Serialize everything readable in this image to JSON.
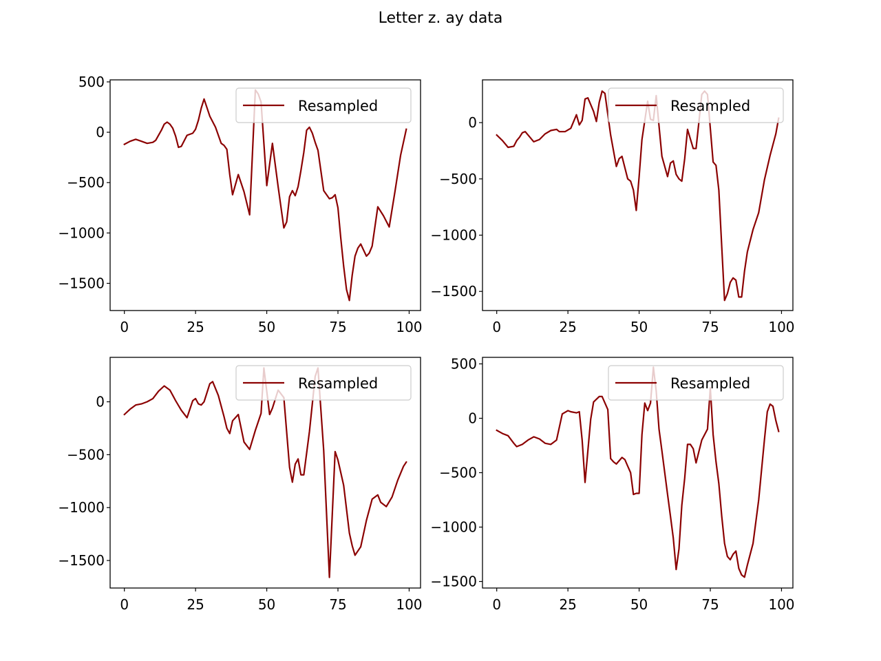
{
  "figure": {
    "title": "Letter z. ay data",
    "line_color": "#8b0000",
    "legend_label": "Resampled"
  },
  "chart_data": [
    {
      "type": "line",
      "legend_placement": "upper right",
      "grid": false,
      "xlim": [
        -5,
        104
      ],
      "ylim": [
        -1770,
        520
      ],
      "xticks": [
        0,
        25,
        50,
        75,
        100
      ],
      "yticks": [
        500,
        0,
        -500,
        -1000,
        -1500
      ],
      "series": [
        {
          "name": "Resampled",
          "x": [
            0,
            2,
            4,
            6,
            8,
            10,
            11,
            13,
            14,
            15,
            16,
            17,
            18,
            19,
            20,
            22,
            24,
            25,
            26,
            27,
            28,
            30,
            32,
            34,
            35,
            36,
            37,
            38,
            40,
            42,
            44,
            46,
            47,
            48,
            50,
            52,
            54,
            56,
            57,
            58,
            59,
            60,
            61,
            62,
            63,
            64,
            65,
            66,
            67,
            68,
            70,
            72,
            73,
            74,
            75,
            76,
            77,
            78,
            79,
            80,
            81,
            82,
            83,
            84,
            85,
            86,
            87,
            89,
            91,
            93,
            95,
            97,
            99
          ],
          "values": [
            -120,
            -90,
            -70,
            -90,
            -110,
            -100,
            -80,
            20,
            80,
            100,
            80,
            40,
            -40,
            -150,
            -140,
            -30,
            -10,
            30,
            120,
            240,
            330,
            160,
            50,
            -110,
            -130,
            -170,
            -420,
            -620,
            -420,
            -590,
            -820,
            420,
            380,
            300,
            -530,
            -110,
            -540,
            -950,
            -890,
            -640,
            -580,
            -630,
            -540,
            -380,
            -200,
            20,
            50,
            -10,
            -100,
            -180,
            -580,
            -660,
            -650,
            -620,
            -750,
            -1050,
            -1330,
            -1560,
            -1670,
            -1420,
            -1230,
            -1150,
            -1110,
            -1170,
            -1230,
            -1200,
            -1130,
            -740,
            -830,
            -940,
            -590,
            -230,
            30
          ]
        }
      ]
    },
    {
      "type": "line",
      "legend_placement": "upper right",
      "grid": false,
      "xlim": [
        -5,
        104
      ],
      "ylim": [
        -1670,
        380
      ],
      "xticks": [
        0,
        25,
        50,
        75,
        100
      ],
      "yticks": [
        0,
        -500,
        -1000,
        -1500
      ],
      "series": [
        {
          "name": "Resampled",
          "x": [
            0,
            2,
            4,
            6,
            7,
            8,
            9,
            10,
            11,
            13,
            15,
            17,
            19,
            21,
            22,
            24,
            26,
            28,
            29,
            30,
            31,
            32,
            34,
            35,
            36,
            37,
            38,
            40,
            42,
            43,
            44,
            46,
            47,
            48,
            49,
            50,
            51,
            53,
            54,
            55,
            56,
            57,
            58,
            60,
            61,
            62,
            63,
            64,
            65,
            66,
            67,
            69,
            70,
            71,
            72,
            73,
            74,
            76,
            77,
            78,
            79,
            80,
            81,
            82,
            83,
            84,
            85,
            86,
            87,
            88,
            90,
            92,
            94,
            96,
            98,
            99
          ],
          "values": [
            -110,
            -160,
            -220,
            -210,
            -160,
            -130,
            -90,
            -80,
            -110,
            -170,
            -150,
            -100,
            -70,
            -60,
            -80,
            -80,
            -50,
            70,
            -20,
            20,
            210,
            220,
            100,
            10,
            180,
            280,
            260,
            -110,
            -390,
            -320,
            -300,
            -500,
            -520,
            -600,
            -780,
            -480,
            -150,
            190,
            30,
            20,
            240,
            -30,
            -300,
            -480,
            -360,
            -340,
            -460,
            -500,
            -520,
            -320,
            -60,
            -230,
            -230,
            10,
            250,
            280,
            250,
            -350,
            -380,
            -600,
            -1100,
            -1580,
            -1520,
            -1420,
            -1380,
            -1400,
            -1550,
            -1550,
            -1320,
            -1150,
            -950,
            -800,
            -510,
            -290,
            -100,
            40
          ]
        }
      ]
    },
    {
      "type": "line",
      "legend_placement": "upper right",
      "grid": false,
      "xlim": [
        -5,
        104
      ],
      "ylim": [
        -1760,
        420
      ],
      "xticks": [
        0,
        25,
        50,
        75,
        100
      ],
      "yticks": [
        0,
        -500,
        -1000,
        -1500
      ],
      "series": [
        {
          "name": "Resampled",
          "x": [
            0,
            2,
            4,
            6,
            8,
            10,
            12,
            14,
            16,
            18,
            20,
            22,
            24,
            25,
            26,
            27,
            28,
            30,
            31,
            33,
            35,
            36,
            37,
            38,
            40,
            42,
            44,
            46,
            48,
            49,
            51,
            52,
            54,
            56,
            58,
            59,
            60,
            61,
            62,
            63,
            65,
            67,
            68,
            70,
            72,
            74,
            75,
            77,
            79,
            80,
            81,
            83,
            85,
            87,
            89,
            90,
            92,
            94,
            96,
            98,
            99
          ],
          "values": [
            -120,
            -70,
            -30,
            -20,
            0,
            30,
            100,
            150,
            110,
            10,
            -80,
            -150,
            10,
            30,
            -20,
            -30,
            0,
            170,
            190,
            60,
            -140,
            -250,
            -300,
            -180,
            -120,
            -380,
            -450,
            -270,
            -110,
            320,
            -120,
            -60,
            110,
            40,
            -620,
            -760,
            -590,
            -540,
            -690,
            -690,
            -280,
            240,
            320,
            -460,
            -1660,
            -470,
            -550,
            -790,
            -1240,
            -1360,
            -1450,
            -1370,
            -1120,
            -920,
            -880,
            -950,
            -990,
            -900,
            -740,
            -610,
            -570
          ]
        }
      ]
    },
    {
      "type": "line",
      "legend_placement": "upper right",
      "grid": false,
      "xlim": [
        -5,
        104
      ],
      "ylim": [
        -1560,
        560
      ],
      "xticks": [
        0,
        25,
        50,
        75,
        100
      ],
      "yticks": [
        500,
        0,
        -500,
        -1000,
        -1500
      ],
      "series": [
        {
          "name": "Resampled",
          "x": [
            0,
            2,
            4,
            6,
            7,
            9,
            11,
            13,
            15,
            17,
            19,
            21,
            23,
            25,
            26,
            28,
            29,
            30,
            31,
            32,
            33,
            34,
            36,
            37,
            39,
            40,
            41,
            42,
            43,
            44,
            45,
            46,
            47,
            48,
            49,
            50,
            51,
            52,
            53,
            54,
            55,
            56,
            57,
            58,
            59,
            60,
            61,
            62,
            63,
            64,
            65,
            66,
            67,
            68,
            69,
            70,
            72,
            74,
            75,
            76,
            77,
            78,
            79,
            80,
            81,
            82,
            83,
            84,
            85,
            86,
            87,
            88,
            90,
            92,
            94,
            95,
            96,
            97,
            98,
            99
          ],
          "values": [
            -110,
            -140,
            -160,
            -230,
            -260,
            -240,
            -200,
            -170,
            -190,
            -230,
            -240,
            -200,
            40,
            70,
            60,
            50,
            60,
            -200,
            -590,
            -300,
            -10,
            150,
            200,
            200,
            80,
            -370,
            -400,
            -420,
            -390,
            -360,
            -380,
            -440,
            -500,
            -700,
            -690,
            -690,
            -150,
            140,
            70,
            140,
            470,
            250,
            -100,
            -300,
            -500,
            -700,
            -900,
            -1100,
            -1390,
            -1200,
            -800,
            -550,
            -240,
            -240,
            -280,
            -410,
            -200,
            -100,
            280,
            -150,
            -400,
            -600,
            -900,
            -1150,
            -1270,
            -1300,
            -1250,
            -1220,
            -1380,
            -1440,
            -1460,
            -1350,
            -1150,
            -750,
            -200,
            60,
            130,
            110,
            -20,
            -120
          ]
        }
      ]
    }
  ]
}
